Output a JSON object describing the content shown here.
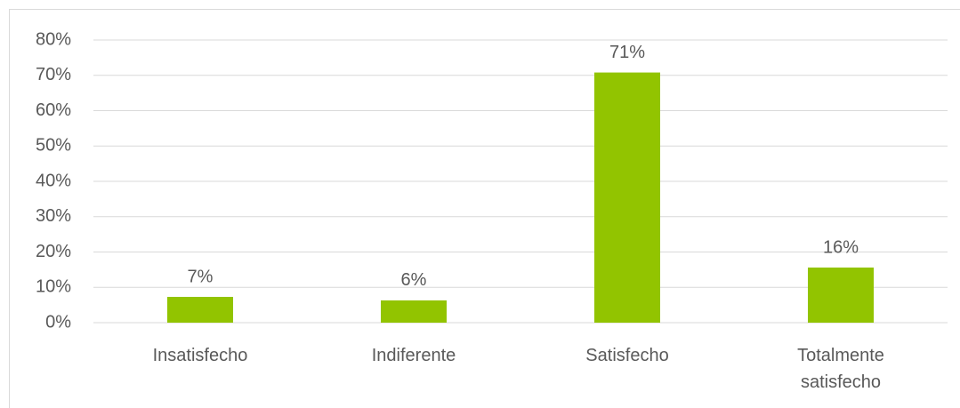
{
  "chart_data": {
    "type": "bar",
    "categories": [
      "Insatisfecho",
      "Indiferente",
      "Satisfecho",
      "Totalmente satisfecho"
    ],
    "values": [
      7.3,
      6.3,
      70.8,
      15.6
    ],
    "value_labels": [
      "7%",
      "6%",
      "71%",
      "16%"
    ],
    "color": "#92c400",
    "ylim": [
      0,
      80
    ],
    "yticks": [
      {
        "value": 0,
        "label": "0%"
      },
      {
        "value": 10,
        "label": "10%"
      },
      {
        "value": 20,
        "label": "20%"
      },
      {
        "value": 30,
        "label": "30%"
      },
      {
        "value": 40,
        "label": "40%"
      },
      {
        "value": 50,
        "label": "50%"
      },
      {
        "value": 60,
        "label": "60%"
      },
      {
        "value": 70,
        "label": "70%"
      },
      {
        "value": 80,
        "label": "80%"
      }
    ],
    "grid": true
  }
}
